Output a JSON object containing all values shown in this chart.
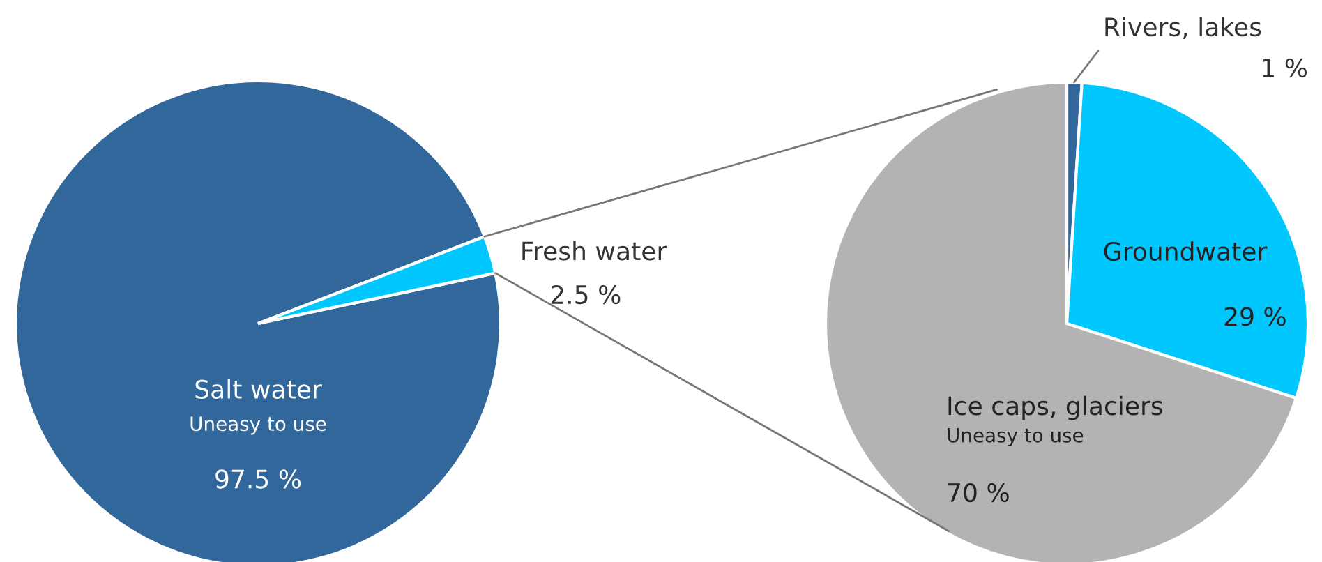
{
  "chart_data": [
    {
      "type": "pie",
      "categories": [
        "Salt water",
        "Fresh water"
      ],
      "values": [
        97.5,
        2.5
      ],
      "colors": [
        "#31679a",
        "#00c8ff"
      ],
      "value_labels": [
        "97.5 %",
        "2.5 %"
      ],
      "annotations": [
        {
          "text": "Uneasy to use",
          "x": "Salt water"
        }
      ]
    },
    {
      "type": "pie",
      "categories": [
        "Rivers, lakes",
        "Groundwater",
        "Ice caps, glaciers"
      ],
      "values": [
        1,
        29,
        70
      ],
      "colors": [
        "#31679a",
        "#00c8ff",
        "#b3b3b3"
      ],
      "value_labels": [
        "1 %",
        "29 %",
        "70 %"
      ],
      "annotations": [
        {
          "text": "Uneasy to use",
          "x": "Ice caps, glaciers"
        }
      ]
    }
  ]
}
